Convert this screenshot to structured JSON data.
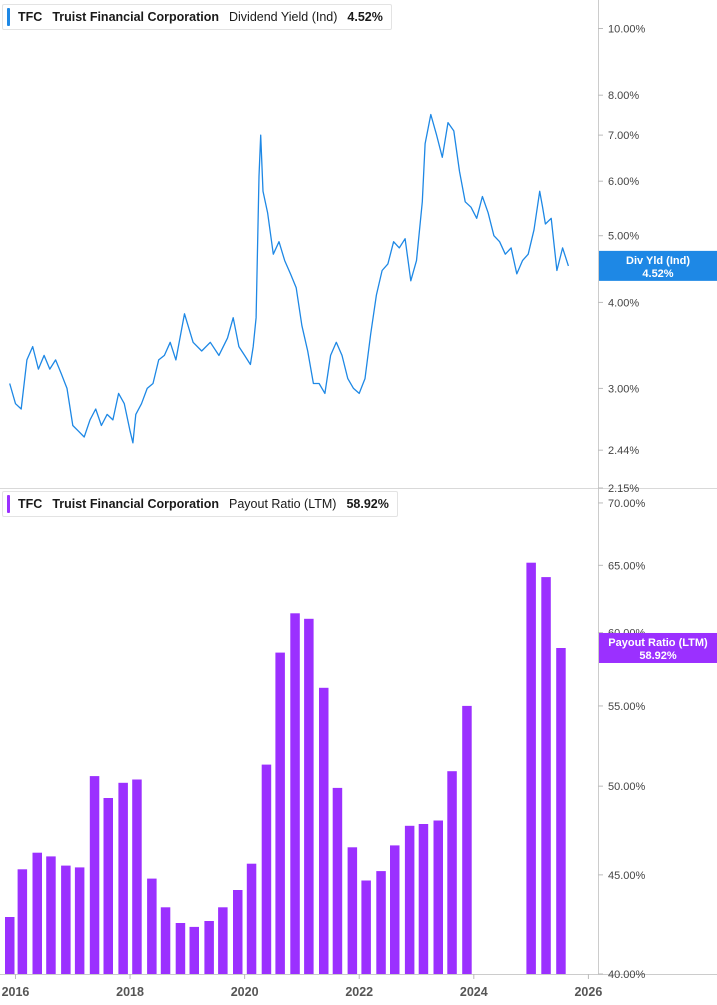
{
  "legend_top": {
    "ticker": "TFC",
    "name": "Truist Financial Corporation",
    "metric": "Dividend Yield (Ind)",
    "value": "4.52%",
    "color": "#1e88e5"
  },
  "legend_bottom": {
    "ticker": "TFC",
    "name": "Truist Financial Corporation",
    "metric": "Payout Ratio (LTM)",
    "value": "58.92%",
    "color": "#9b30ff"
  },
  "chart_data": [
    {
      "type": "line",
      "metric": "Dividend Yield (Ind)",
      "y_scale": "log",
      "ylim": [
        2.15,
        11.0
      ],
      "y_ticks": [
        {
          "v": 10.0,
          "label": "10.00%"
        },
        {
          "v": 8.0,
          "label": "8.00%"
        },
        {
          "v": 7.0,
          "label": "7.00%"
        },
        {
          "v": 6.0,
          "label": "6.00%"
        },
        {
          "v": 5.0,
          "label": "5.00%"
        },
        {
          "v": 4.0,
          "label": "4.00%"
        },
        {
          "v": 3.0,
          "label": "3.00%"
        },
        {
          "v": 2.44,
          "label": "2.44%"
        },
        {
          "v": 2.15,
          "label": "2.15%"
        }
      ],
      "current_label": {
        "line1": "Div Yld (Ind)",
        "line2": "4.52%",
        "value": 4.52
      },
      "color": "#1e88e5",
      "series": [
        {
          "points": [
            [
              2015.9,
              3.05
            ],
            [
              2016.0,
              2.85
            ],
            [
              2016.1,
              2.8
            ],
            [
              2016.2,
              3.3
            ],
            [
              2016.3,
              3.45
            ],
            [
              2016.4,
              3.2
            ],
            [
              2016.5,
              3.35
            ],
            [
              2016.6,
              3.2
            ],
            [
              2016.7,
              3.3
            ],
            [
              2016.8,
              3.15
            ],
            [
              2016.9,
              3.0
            ],
            [
              2017.0,
              2.65
            ],
            [
              2017.1,
              2.6
            ],
            [
              2017.2,
              2.55
            ],
            [
              2017.3,
              2.7
            ],
            [
              2017.4,
              2.8
            ],
            [
              2017.5,
              2.65
            ],
            [
              2017.6,
              2.75
            ],
            [
              2017.7,
              2.7
            ],
            [
              2017.8,
              2.95
            ],
            [
              2017.9,
              2.85
            ],
            [
              2018.0,
              2.6
            ],
            [
              2018.05,
              2.5
            ],
            [
              2018.1,
              2.75
            ],
            [
              2018.2,
              2.85
            ],
            [
              2018.3,
              3.0
            ],
            [
              2018.4,
              3.05
            ],
            [
              2018.5,
              3.3
            ],
            [
              2018.6,
              3.35
            ],
            [
              2018.7,
              3.5
            ],
            [
              2018.8,
              3.3
            ],
            [
              2018.95,
              3.85
            ],
            [
              2019.1,
              3.5
            ],
            [
              2019.25,
              3.4
            ],
            [
              2019.4,
              3.5
            ],
            [
              2019.55,
              3.35
            ],
            [
              2019.7,
              3.55
            ],
            [
              2019.8,
              3.8
            ],
            [
              2019.9,
              3.45
            ],
            [
              2020.0,
              3.35
            ],
            [
              2020.1,
              3.25
            ],
            [
              2020.15,
              3.45
            ],
            [
              2020.2,
              3.8
            ],
            [
              2020.25,
              6.1
            ],
            [
              2020.28,
              7.0
            ],
            [
              2020.32,
              5.8
            ],
            [
              2020.4,
              5.4
            ],
            [
              2020.5,
              4.7
            ],
            [
              2020.6,
              4.9
            ],
            [
              2020.7,
              4.6
            ],
            [
              2020.8,
              4.4
            ],
            [
              2020.9,
              4.2
            ],
            [
              2021.0,
              3.7
            ],
            [
              2021.1,
              3.4
            ],
            [
              2021.2,
              3.05
            ],
            [
              2021.3,
              3.05
            ],
            [
              2021.4,
              2.95
            ],
            [
              2021.5,
              3.35
            ],
            [
              2021.6,
              3.5
            ],
            [
              2021.7,
              3.35
            ],
            [
              2021.8,
              3.1
            ],
            [
              2021.9,
              3.0
            ],
            [
              2022.0,
              2.95
            ],
            [
              2022.1,
              3.1
            ],
            [
              2022.2,
              3.6
            ],
            [
              2022.3,
              4.1
            ],
            [
              2022.4,
              4.45
            ],
            [
              2022.5,
              4.55
            ],
            [
              2022.6,
              4.9
            ],
            [
              2022.7,
              4.8
            ],
            [
              2022.8,
              4.95
            ],
            [
              2022.9,
              4.3
            ],
            [
              2023.0,
              4.6
            ],
            [
              2023.1,
              5.6
            ],
            [
              2023.15,
              6.8
            ],
            [
              2023.25,
              7.5
            ],
            [
              2023.35,
              7.0
            ],
            [
              2023.45,
              6.5
            ],
            [
              2023.55,
              7.3
            ],
            [
              2023.65,
              7.1
            ],
            [
              2023.75,
              6.2
            ],
            [
              2023.85,
              5.6
            ],
            [
              2023.95,
              5.5
            ],
            [
              2024.05,
              5.3
            ],
            [
              2024.15,
              5.7
            ],
            [
              2024.25,
              5.4
            ],
            [
              2024.35,
              5.0
            ],
            [
              2024.45,
              4.9
            ],
            [
              2024.55,
              4.7
            ],
            [
              2024.65,
              4.8
            ],
            [
              2024.75,
              4.4
            ],
            [
              2024.85,
              4.6
            ],
            [
              2024.95,
              4.7
            ],
            [
              2025.05,
              5.1
            ],
            [
              2025.15,
              5.8
            ],
            [
              2025.2,
              5.5
            ],
            [
              2025.25,
              5.2
            ],
            [
              2025.35,
              5.3
            ],
            [
              2025.45,
              4.45
            ],
            [
              2025.55,
              4.8
            ],
            [
              2025.65,
              4.52
            ]
          ]
        }
      ]
    },
    {
      "type": "bar",
      "metric": "Payout Ratio (LTM)",
      "y_scale": "log",
      "ylim": [
        40.0,
        71.0
      ],
      "y_ticks": [
        {
          "v": 70.0,
          "label": "70.00%"
        },
        {
          "v": 65.0,
          "label": "65.00%"
        },
        {
          "v": 60.0,
          "label": "60.00%"
        },
        {
          "v": 55.0,
          "label": "55.00%"
        },
        {
          "v": 50.0,
          "label": "50.00%"
        },
        {
          "v": 45.0,
          "label": "45.00%"
        },
        {
          "v": 40.0,
          "label": "40.00%"
        }
      ],
      "current_label": {
        "line1": "Payout Ratio (LTM)",
        "line2": "58.92%",
        "value": 58.92
      },
      "color": "#9b30ff",
      "bars": [
        {
          "x": 2015.9,
          "v": 42.8
        },
        {
          "x": 2016.12,
          "v": 45.3
        },
        {
          "x": 2016.38,
          "v": 46.2
        },
        {
          "x": 2016.62,
          "v": 46.0
        },
        {
          "x": 2016.88,
          "v": 45.5
        },
        {
          "x": 2017.12,
          "v": 45.4
        },
        {
          "x": 2017.38,
          "v": 50.6
        },
        {
          "x": 2017.62,
          "v": 49.3
        },
        {
          "x": 2017.88,
          "v": 50.2
        },
        {
          "x": 2018.12,
          "v": 50.4
        },
        {
          "x": 2018.38,
          "v": 44.8
        },
        {
          "x": 2018.62,
          "v": 43.3
        },
        {
          "x": 2018.88,
          "v": 42.5
        },
        {
          "x": 2019.12,
          "v": 42.3
        },
        {
          "x": 2019.38,
          "v": 42.6
        },
        {
          "x": 2019.62,
          "v": 43.3
        },
        {
          "x": 2019.88,
          "v": 44.2
        },
        {
          "x": 2020.12,
          "v": 45.6
        },
        {
          "x": 2020.38,
          "v": 51.3
        },
        {
          "x": 2020.62,
          "v": 58.6
        },
        {
          "x": 2020.88,
          "v": 61.4
        },
        {
          "x": 2021.12,
          "v": 61.0
        },
        {
          "x": 2021.38,
          "v": 56.2
        },
        {
          "x": 2021.62,
          "v": 49.9
        },
        {
          "x": 2021.88,
          "v": 46.5
        },
        {
          "x": 2022.12,
          "v": 44.7
        },
        {
          "x": 2022.38,
          "v": 45.2
        },
        {
          "x": 2022.62,
          "v": 46.6
        },
        {
          "x": 2022.88,
          "v": 47.7
        },
        {
          "x": 2023.12,
          "v": 47.8
        },
        {
          "x": 2023.38,
          "v": 48.0
        },
        {
          "x": 2023.62,
          "v": 50.9
        },
        {
          "x": 2023.88,
          "v": 55.0
        },
        {
          "x": 2025.0,
          "v": 65.2
        },
        {
          "x": 2025.26,
          "v": 64.1
        },
        {
          "x": 2025.52,
          "v": 58.92
        }
      ]
    }
  ],
  "x_axis": {
    "xlim": [
      2015.73,
      2026.15
    ],
    "ticks": [
      {
        "v": 2016,
        "label": "2016"
      },
      {
        "v": 2018,
        "label": "2018"
      },
      {
        "v": 2020,
        "label": "2020"
      },
      {
        "v": 2022,
        "label": "2022"
      },
      {
        "v": 2024,
        "label": "2024"
      },
      {
        "v": 2026,
        "label": "2026"
      }
    ]
  }
}
